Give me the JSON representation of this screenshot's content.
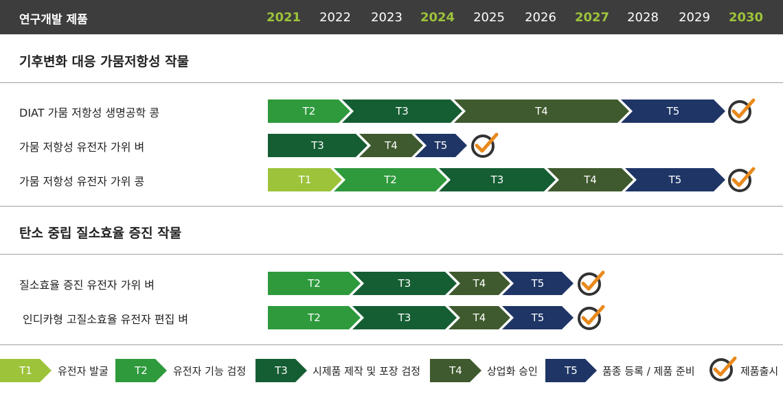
{
  "header": {
    "title": "연구개발 제품",
    "years": [
      "2021",
      "2022",
      "2023",
      "2024",
      "2025",
      "2026",
      "2027",
      "2028",
      "2029",
      "2030"
    ],
    "highlight_years": [
      "2021",
      "2024",
      "2027",
      "2030"
    ]
  },
  "sections": [
    {
      "title": "기후변화 대응 가뭄저항성 작물",
      "rows": [
        {
          "label": "DIAT 가뭄 저항성 생명공학 콩",
          "stages": [
            "T2",
            "T3",
            "T4",
            "T5"
          ]
        },
        {
          "label": "가뭄 저항성 유전자 가위 벼",
          "stages": [
            "T3",
            "T4",
            "T5"
          ]
        },
        {
          "label": "가뭄 저항성 유전자 가위 콩",
          "stages": [
            "T1",
            "T2",
            "T3",
            "T4",
            "T5"
          ]
        }
      ]
    },
    {
      "title": "탄소 중립 질소효율 증진 작물",
      "rows": [
        {
          "label": "질소효율 증진 유전자 가위 벼",
          "stages": [
            "T2",
            "T3",
            "T4",
            "T5"
          ]
        },
        {
          "label": "인디카형 고질소효율 유전자 편집 벼",
          "stages": [
            "T2",
            "T3",
            "T4",
            "T5"
          ]
        }
      ]
    }
  ],
  "legend": [
    {
      "code": "T1",
      "text": "유전자 발굴"
    },
    {
      "code": "T2",
      "text": "유전자 기능 검정"
    },
    {
      "code": "T3",
      "text": "시제품 제작 및 포장 검정"
    },
    {
      "code": "T4",
      "text": "상업화 승인"
    },
    {
      "code": "T5",
      "text": "품종 등록 / 제품 준비"
    }
  ],
  "legend_release": "제품출시",
  "colors": {
    "T1": "#9dc33b",
    "T2": "#2e9a3c",
    "T3": "#155e33",
    "T4": "#3f5a2e",
    "T5": "#1f3566",
    "check_ring": "#333333",
    "check_mark": "#e8891c",
    "header_bg": "#3d3d3d",
    "highlight_year": "#9dc33b"
  },
  "icons": {
    "release": "check-circle-icon"
  }
}
